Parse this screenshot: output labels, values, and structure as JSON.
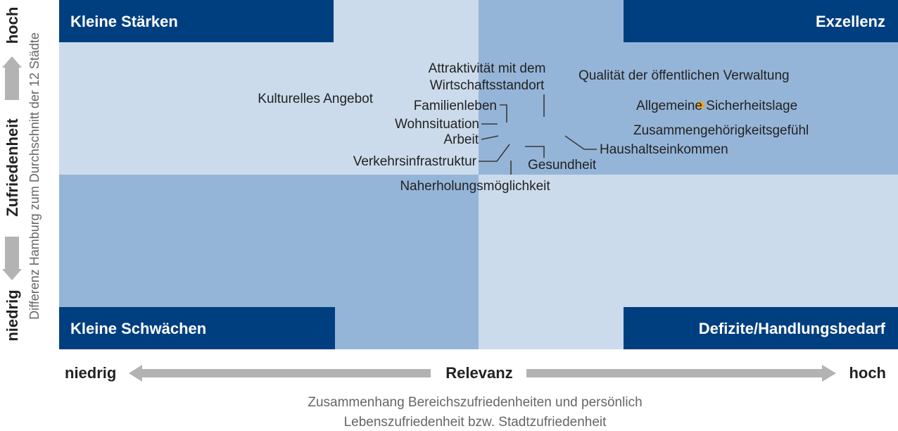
{
  "colors": {
    "quad_light": "#cbdbeb",
    "quad_mid": "#95b5d8",
    "corner_box": "#003f7f",
    "marker": "#f0a61a",
    "leader": "#3a3a3a",
    "arrow": "#b3b3b3",
    "text": "#222222",
    "caption": "#666666"
  },
  "y_axis": {
    "high": "hoch",
    "label": "Zufriedenheit",
    "low": "niedrig",
    "sub_label": "Differenz Hamburg zum Durchschnitt der 12 Städte"
  },
  "x_axis": {
    "low": "niedrig",
    "label": "Relevanz",
    "high": "hoch"
  },
  "caption": {
    "line1": "Zusammenhang Bereichszufriedenheiten und persönlich",
    "line2": "Lebenszufriedenheit bzw. Stadtzufriedenheit"
  },
  "chart_data": {
    "type": "scatter",
    "title": "",
    "xlabel": "Relevanz",
    "ylabel": "Zufriedenheit",
    "xlim": [
      0,
      100
    ],
    "ylim": [
      0,
      100
    ],
    "quadrants": {
      "top_left": "Kleine Stärken",
      "top_right": "Exzellenz",
      "bottom_left": "Kleine Schwächen",
      "bottom_right": "Defizite/Handlungsbedarf"
    },
    "points": [
      {
        "label": "Kulturelles Angebot",
        "x": 76.5,
        "y": 69.9
      },
      {
        "label": "Attraktivität mit dem Wirtschaftsstandort",
        "x": 115.8,
        "y": 66.1
      },
      {
        "label": "Qualität der öffentlichen Verwaltung",
        "x": 123.2,
        "y": 86.4
      },
      {
        "label": "Familienleben",
        "x": 107.1,
        "y": 64.0
      },
      {
        "label": "Allgemeine Sicherheitslage",
        "x": 137.4,
        "y": 67.8
      },
      {
        "label": "Wohnsituation",
        "x": 106.0,
        "y": 63.6
      },
      {
        "label": "Zusammengehörigkeitsgefühl",
        "x": 136.2,
        "y": 63.6
      },
      {
        "label": "Arbeit",
        "x": 106.0,
        "y": 61.0
      },
      {
        "label": "Haushaltseinkommen",
        "x": 119.5,
        "y": 60.6
      },
      {
        "label": "Verkehrsinfrastruktur",
        "x": 107.7,
        "y": 58.1
      },
      {
        "label": "Gesundheit",
        "x": 110.3,
        "y": 58.1
      },
      {
        "label": "Naherholungsmöglichkeit",
        "x": 107.7,
        "y": 50.8
      }
    ]
  }
}
